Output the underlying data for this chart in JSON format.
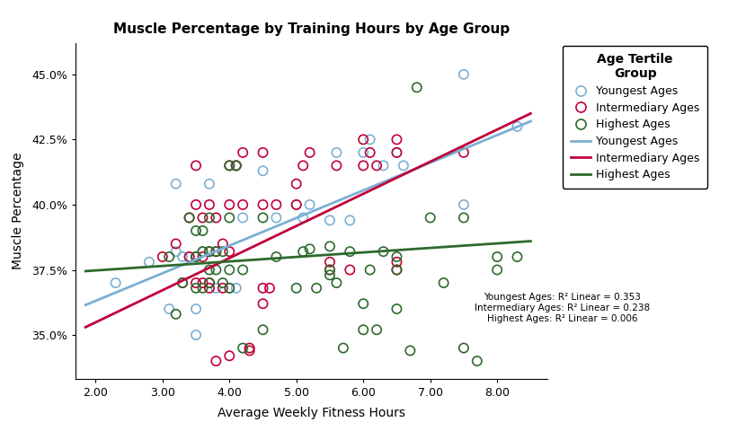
{
  "title": "Muscle Percentage by Training Hours by Age Group",
  "xlabel": "Average Weekly Fitness Hours",
  "ylabel": "Muscle Percentage",
  "legend_title": "Age Tertile\nGroup",
  "r2_line1": "Youngest Ages: R² Linear = 0.353",
  "r2_line2": "Intermediary Ages: R² Linear = 0.238",
  "r2_line3": "Highest Ages: R² Linear = 0.006",
  "xlim": [
    1.7,
    8.75
  ],
  "ylim": [
    0.333,
    0.462
  ],
  "xticks": [
    2.0,
    3.0,
    4.0,
    5.0,
    6.0,
    7.0,
    8.0
  ],
  "yticks": [
    0.35,
    0.375,
    0.4,
    0.425,
    0.45
  ],
  "colors": {
    "youngest": "#7BAFD4",
    "intermediary": "#C0003A",
    "highest": "#2D6A2D"
  },
  "youngest_scatter": [
    [
      2.3,
      0.37
    ],
    [
      2.8,
      0.378
    ],
    [
      3.1,
      0.36
    ],
    [
      3.2,
      0.382
    ],
    [
      3.2,
      0.408
    ],
    [
      3.3,
      0.38
    ],
    [
      3.4,
      0.38
    ],
    [
      3.5,
      0.35
    ],
    [
      3.5,
      0.36
    ],
    [
      3.6,
      0.382
    ],
    [
      3.7,
      0.408
    ],
    [
      3.8,
      0.368
    ],
    [
      4.0,
      0.368
    ],
    [
      4.1,
      0.368
    ],
    [
      4.1,
      0.415
    ],
    [
      4.2,
      0.395
    ],
    [
      4.5,
      0.413
    ],
    [
      4.7,
      0.395
    ],
    [
      5.0,
      0.4
    ],
    [
      5.1,
      0.395
    ],
    [
      5.2,
      0.4
    ],
    [
      5.5,
      0.394
    ],
    [
      5.6,
      0.42
    ],
    [
      5.8,
      0.394
    ],
    [
      6.0,
      0.42
    ],
    [
      6.1,
      0.425
    ],
    [
      6.3,
      0.415
    ],
    [
      6.5,
      0.42
    ],
    [
      6.6,
      0.415
    ],
    [
      7.5,
      0.45
    ],
    [
      7.5,
      0.4
    ],
    [
      8.3,
      0.43
    ]
  ],
  "intermediary_scatter": [
    [
      3.0,
      0.38
    ],
    [
      3.2,
      0.385
    ],
    [
      3.3,
      0.37
    ],
    [
      3.4,
      0.38
    ],
    [
      3.4,
      0.395
    ],
    [
      3.5,
      0.38
    ],
    [
      3.5,
      0.37
    ],
    [
      3.5,
      0.4
    ],
    [
      3.5,
      0.415
    ],
    [
      3.6,
      0.38
    ],
    [
      3.6,
      0.37
    ],
    [
      3.6,
      0.395
    ],
    [
      3.7,
      0.368
    ],
    [
      3.7,
      0.382
    ],
    [
      3.7,
      0.37
    ],
    [
      3.7,
      0.4
    ],
    [
      3.8,
      0.34
    ],
    [
      3.8,
      0.382
    ],
    [
      3.8,
      0.395
    ],
    [
      3.9,
      0.368
    ],
    [
      3.9,
      0.385
    ],
    [
      4.0,
      0.382
    ],
    [
      4.0,
      0.415
    ],
    [
      4.0,
      0.4
    ],
    [
      4.0,
      0.342
    ],
    [
      4.1,
      0.415
    ],
    [
      4.2,
      0.42
    ],
    [
      4.2,
      0.4
    ],
    [
      4.3,
      0.344
    ],
    [
      4.3,
      0.345
    ],
    [
      4.5,
      0.42
    ],
    [
      4.5,
      0.4
    ],
    [
      4.5,
      0.368
    ],
    [
      4.5,
      0.362
    ],
    [
      4.6,
      0.368
    ],
    [
      4.7,
      0.4
    ],
    [
      5.0,
      0.4
    ],
    [
      5.0,
      0.408
    ],
    [
      5.1,
      0.415
    ],
    [
      5.2,
      0.42
    ],
    [
      5.5,
      0.375
    ],
    [
      5.5,
      0.378
    ],
    [
      5.6,
      0.415
    ],
    [
      5.8,
      0.375
    ],
    [
      6.0,
      0.425
    ],
    [
      6.0,
      0.415
    ],
    [
      6.1,
      0.42
    ],
    [
      6.2,
      0.415
    ],
    [
      6.5,
      0.42
    ],
    [
      6.5,
      0.425
    ],
    [
      6.5,
      0.375
    ],
    [
      6.5,
      0.378
    ],
    [
      7.5,
      0.42
    ]
  ],
  "highest_scatter": [
    [
      3.1,
      0.38
    ],
    [
      3.2,
      0.358
    ],
    [
      3.3,
      0.37
    ],
    [
      3.4,
      0.395
    ],
    [
      3.5,
      0.38
    ],
    [
      3.5,
      0.39
    ],
    [
      3.5,
      0.368
    ],
    [
      3.6,
      0.382
    ],
    [
      3.6,
      0.368
    ],
    [
      3.6,
      0.39
    ],
    [
      3.7,
      0.37
    ],
    [
      3.7,
      0.382
    ],
    [
      3.7,
      0.395
    ],
    [
      3.7,
      0.375
    ],
    [
      3.8,
      0.375
    ],
    [
      3.8,
      0.382
    ],
    [
      3.9,
      0.37
    ],
    [
      3.9,
      0.382
    ],
    [
      4.0,
      0.368
    ],
    [
      4.0,
      0.375
    ],
    [
      4.0,
      0.395
    ],
    [
      4.0,
      0.415
    ],
    [
      4.1,
      0.415
    ],
    [
      4.2,
      0.375
    ],
    [
      4.2,
      0.345
    ],
    [
      4.5,
      0.352
    ],
    [
      4.5,
      0.395
    ],
    [
      4.7,
      0.38
    ],
    [
      5.0,
      0.368
    ],
    [
      5.1,
      0.382
    ],
    [
      5.2,
      0.383
    ],
    [
      5.3,
      0.368
    ],
    [
      5.5,
      0.373
    ],
    [
      5.5,
      0.375
    ],
    [
      5.5,
      0.384
    ],
    [
      5.6,
      0.37
    ],
    [
      5.7,
      0.345
    ],
    [
      5.8,
      0.382
    ],
    [
      6.0,
      0.352
    ],
    [
      6.0,
      0.362
    ],
    [
      6.1,
      0.375
    ],
    [
      6.2,
      0.352
    ],
    [
      6.3,
      0.382
    ],
    [
      6.5,
      0.36
    ],
    [
      6.5,
      0.375
    ],
    [
      6.5,
      0.38
    ],
    [
      6.7,
      0.344
    ],
    [
      6.8,
      0.445
    ],
    [
      7.0,
      0.395
    ],
    [
      7.2,
      0.37
    ],
    [
      7.5,
      0.345
    ],
    [
      7.5,
      0.395
    ],
    [
      7.7,
      0.34
    ],
    [
      8.0,
      0.38
    ],
    [
      8.0,
      0.375
    ],
    [
      8.3,
      0.38
    ]
  ],
  "youngest_line": {
    "x0": 1.85,
    "y0": 0.3615,
    "x1": 8.5,
    "y1": 0.432
  },
  "intermediary_line": {
    "x0": 1.85,
    "y0": 0.353,
    "x1": 8.5,
    "y1": 0.435
  },
  "highest_line": {
    "x0": 1.85,
    "y0": 0.3745,
    "x1": 8.5,
    "y1": 0.386
  }
}
